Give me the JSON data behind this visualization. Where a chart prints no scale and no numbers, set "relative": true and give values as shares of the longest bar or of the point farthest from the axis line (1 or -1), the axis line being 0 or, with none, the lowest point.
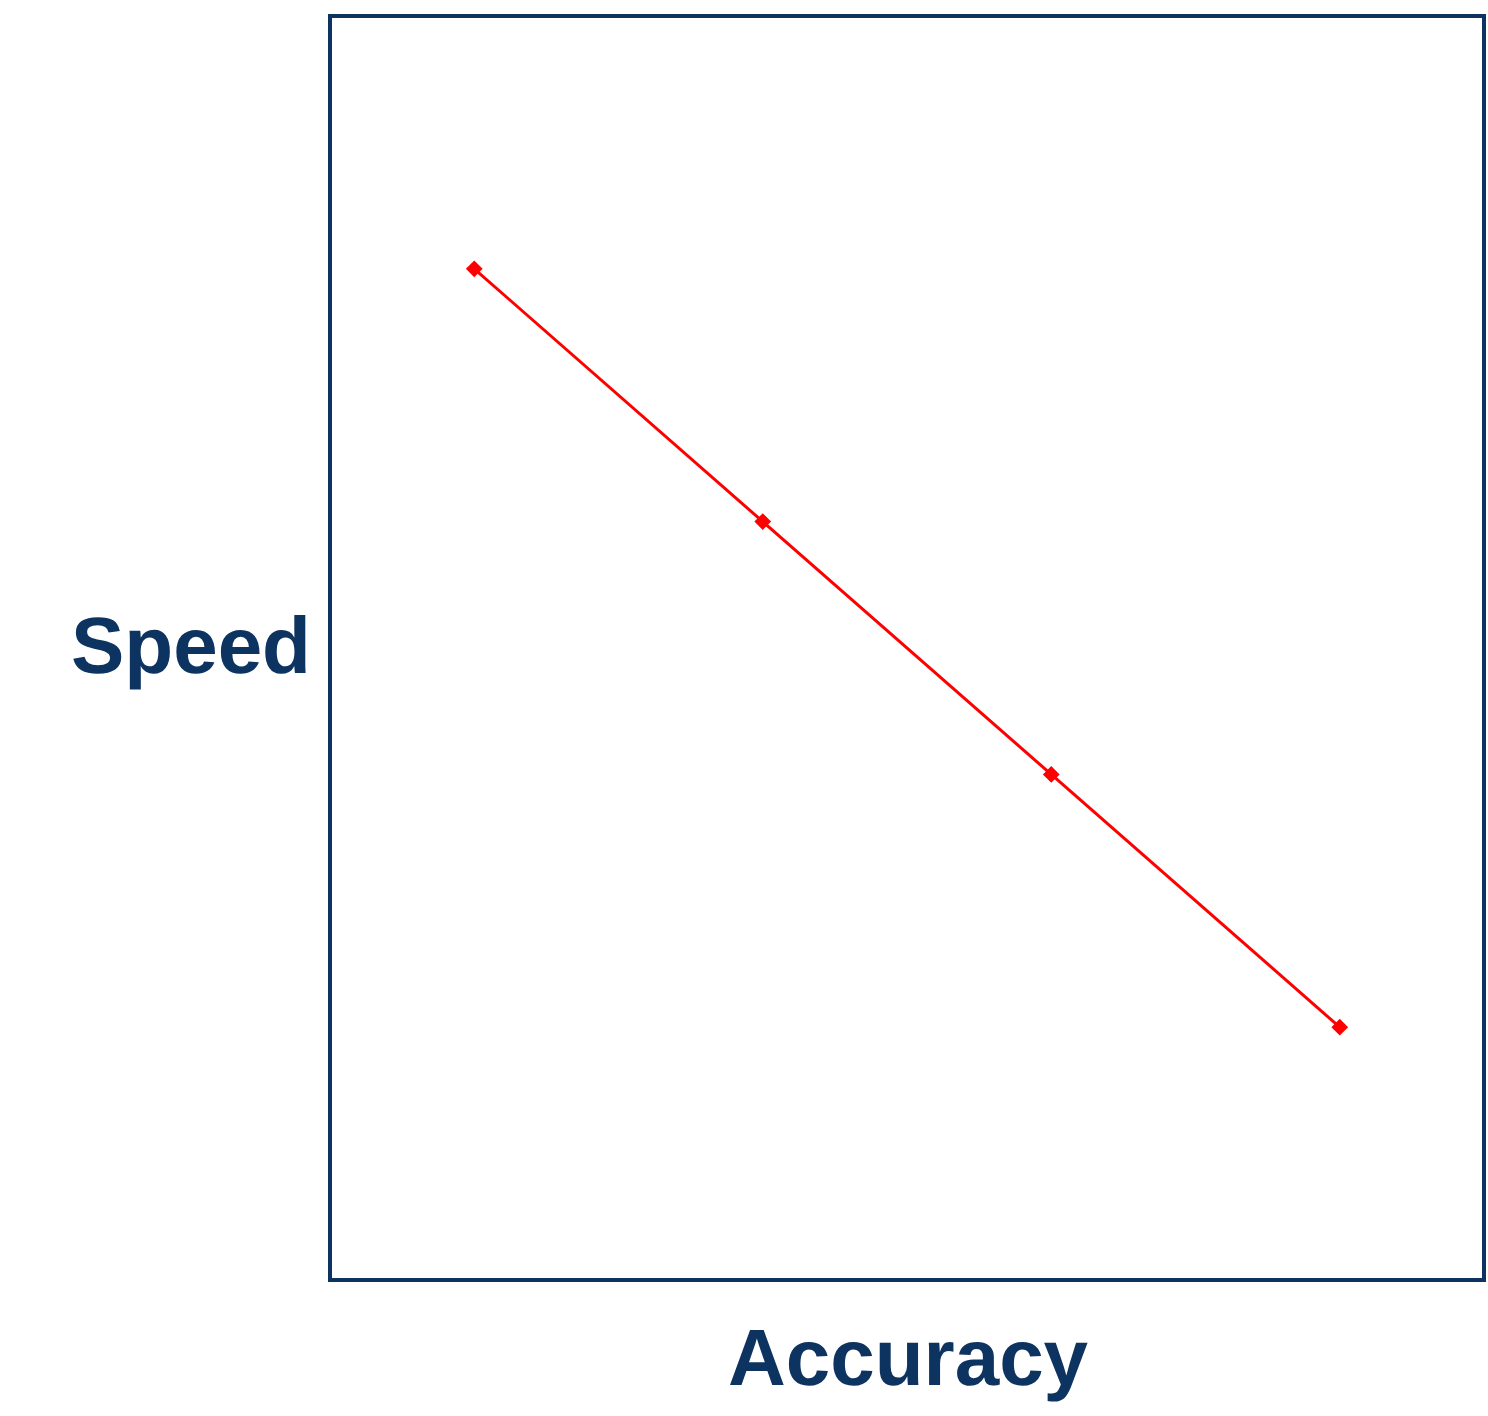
{
  "chart_data": {
    "type": "line",
    "xlabel": "Accuracy",
    "ylabel": "Speed",
    "categories": [
      null,
      null,
      null,
      null
    ],
    "series": [
      {
        "color": "#ff0000",
        "values": [
          1,
          0.75,
          0.5,
          0.25
        ]
      }
    ],
    "relative": true,
    "marker": "diamond",
    "line_style": "solid",
    "grid": false
  }
}
